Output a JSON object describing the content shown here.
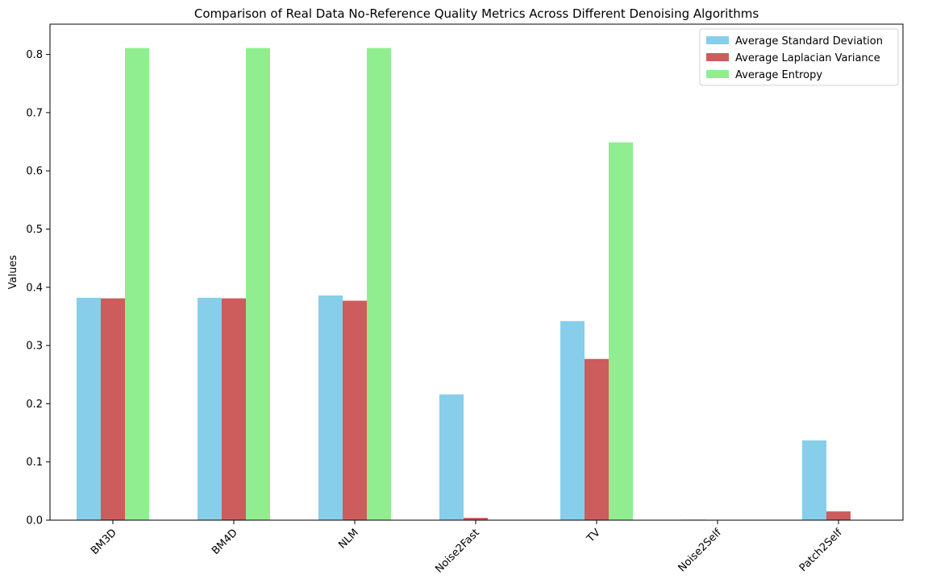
{
  "chart_data": {
    "type": "bar",
    "title": "Comparison of Real Data No-Reference Quality Metrics Across Different Denoising Algorithms",
    "xlabel": "",
    "ylabel": "Values",
    "ylim": [
      0,
      0.852
    ],
    "yticks": [
      "0.0",
      "0.1",
      "0.2",
      "0.3",
      "0.4",
      "0.5",
      "0.6",
      "0.7",
      "0.8"
    ],
    "categories": [
      "BM3D",
      "BM4D",
      "NLM",
      "Noise2Fast",
      "TV",
      "Noise2Self",
      "Patch2Self"
    ],
    "series": [
      {
        "name": "Average Standard Deviation",
        "color": "#87ceeb",
        "values": [
          0.382,
          0.382,
          0.386,
          0.216,
          0.342,
          0.001,
          0.137
        ]
      },
      {
        "name": "Average Laplacian Variance",
        "color": "#cd5c5c",
        "values": [
          0.381,
          0.381,
          0.377,
          0.004,
          0.277,
          0.0,
          0.015
        ]
      },
      {
        "name": "Average Entropy",
        "color": "#90ee90",
        "values": [
          0.811,
          0.811,
          0.811,
          0.0,
          0.649,
          0.0,
          0.0
        ]
      }
    ],
    "legend": "top-right",
    "grid": false
  }
}
